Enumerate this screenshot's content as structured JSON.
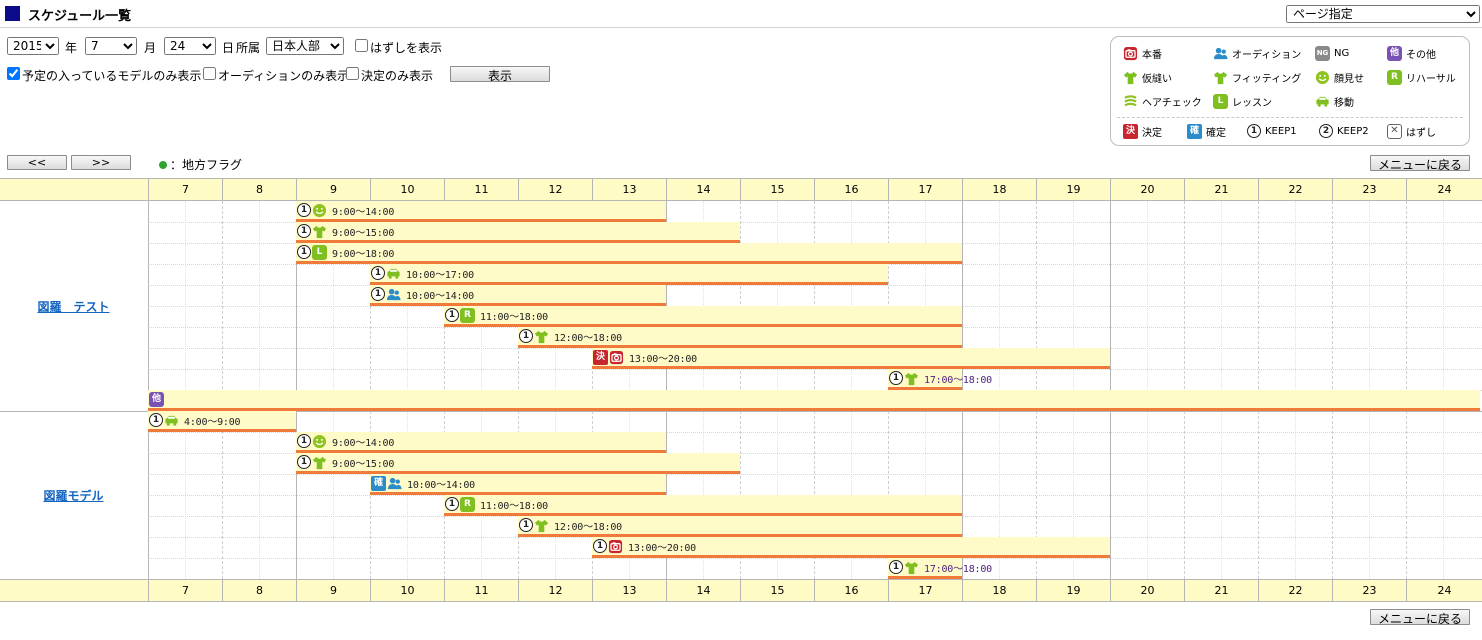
{
  "header": {
    "title": "スケジュール一覧",
    "page_select": "ページ指定"
  },
  "filters": {
    "year": "2015",
    "year_label": "年",
    "month": "7",
    "month_label": "月",
    "day": "24",
    "day_label": "日",
    "dept_label": "所属",
    "dept": "日本人部",
    "show_hazushi": "はずしを表示",
    "only_scheduled": "予定の入っているモデルのみ表示",
    "only_audition": "オーディションのみ表示",
    "only_decided": "決定のみ表示",
    "show_button": "表示"
  },
  "legend": {
    "items": [
      {
        "icon": "camera-icon",
        "label": "本番"
      },
      {
        "icon": "person-icon",
        "label": "オーディション"
      },
      {
        "icon": "ng-icon",
        "label": "NG",
        "glyph": "NG"
      },
      {
        "icon": "other-icon",
        "label": "その他",
        "glyph": "他"
      },
      {
        "icon": "shirt-icon",
        "label": "仮縫い"
      },
      {
        "icon": "shirt-icon",
        "label": "フィッティング"
      },
      {
        "icon": "smile-icon",
        "label": "顔見せ"
      },
      {
        "icon": "rehearsal-icon",
        "label": "リハーサル",
        "glyph": "R"
      },
      {
        "icon": "hair-icon",
        "label": "ヘアチェック"
      },
      {
        "icon": "lesson-icon",
        "label": "レッスン",
        "glyph": "L"
      },
      {
        "icon": "car-icon",
        "label": "移動"
      },
      {
        "icon": "kettei-icon",
        "label": "決定",
        "glyph": "決"
      },
      {
        "icon": "kakutei-icon",
        "label": "確定",
        "glyph": "確"
      },
      {
        "icon": "keep1-icon",
        "label": "KEEP1",
        "glyph": "1"
      },
      {
        "icon": "keep2-icon",
        "label": "KEEP2",
        "glyph": "2"
      },
      {
        "icon": "hazushi-icon",
        "label": "はずし",
        "glyph": "✕"
      }
    ]
  },
  "nav": {
    "prev": "<<",
    "next": ">>",
    "flag_note": "：地方フラグ",
    "menu_back": "メニューに戻る"
  },
  "hours": [
    "7",
    "8",
    "9",
    "10",
    "11",
    "12",
    "13",
    "14",
    "15",
    "16",
    "17",
    "18",
    "19",
    "20",
    "21",
    "22",
    "23",
    "24"
  ],
  "models": [
    {
      "name": "図羅　テスト",
      "events": [
        {
          "start": 9,
          "end": 14,
          "status": "1",
          "type": "smile",
          "time": "9:00〜14:00"
        },
        {
          "start": 9,
          "end": 15,
          "status": "1",
          "type": "shirt",
          "time": "9:00〜15:00"
        },
        {
          "start": 9,
          "end": 18,
          "status": "1",
          "type": "L",
          "time": "9:00〜18:00"
        },
        {
          "start": 10,
          "end": 17,
          "status": "1",
          "type": "car",
          "time": "10:00〜17:00"
        },
        {
          "start": 10,
          "end": 14,
          "status": "1",
          "type": "person",
          "time": "10:00〜14:00"
        },
        {
          "start": 11,
          "end": 18,
          "status": "1",
          "type": "R",
          "time": "11:00〜18:00"
        },
        {
          "start": 12,
          "end": 18,
          "status": "1",
          "type": "shirt",
          "time": "12:00〜18:00"
        },
        {
          "start": 13,
          "end": 20,
          "status": "決",
          "type": "camera",
          "time": "13:00〜20:00"
        },
        {
          "start": 17,
          "end": 18,
          "status": "1",
          "type": "shirt",
          "time": "17:00〜18:00",
          "purple": true
        },
        {
          "start": 7,
          "end": 25,
          "status": "",
          "type": "他",
          "time": ""
        }
      ]
    },
    {
      "name": "図羅モデル",
      "events": [
        {
          "start": 7,
          "end": 9,
          "status": "1",
          "type": "car",
          "time": "4:00〜9:00"
        },
        {
          "start": 9,
          "end": 14,
          "status": "1",
          "type": "smile",
          "time": "9:00〜14:00"
        },
        {
          "start": 9,
          "end": 15,
          "status": "1",
          "type": "shirt",
          "time": "9:00〜15:00"
        },
        {
          "start": 10,
          "end": 14,
          "status": "確",
          "type": "person",
          "time": "10:00〜14:00"
        },
        {
          "start": 11,
          "end": 18,
          "status": "1",
          "type": "R",
          "time": "11:00〜18:00"
        },
        {
          "start": 12,
          "end": 18,
          "status": "1",
          "type": "shirt",
          "time": "12:00〜18:00"
        },
        {
          "start": 13,
          "end": 20,
          "status": "1",
          "type": "camera",
          "time": "13:00〜20:00"
        },
        {
          "start": 17,
          "end": 18,
          "status": "1",
          "type": "shirt",
          "time": "17:00〜18:00",
          "purple": true
        }
      ]
    }
  ],
  "colors": {
    "header_bg": "#fffbc4",
    "bar_bg": "#fffbc8",
    "bar_line": "#f07a3a",
    "link": "#1565c0"
  }
}
